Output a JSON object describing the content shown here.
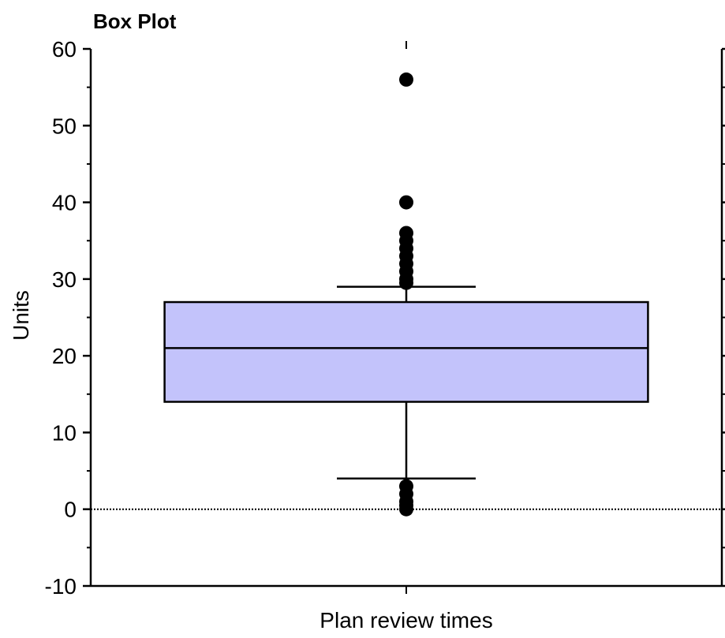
{
  "chart_data": {
    "type": "box",
    "title": "Box Plot",
    "ylabel": "Units",
    "categories": [
      "Plan review times"
    ],
    "boxes": [
      {
        "whisker_low": 4,
        "q1": 14,
        "median": 21,
        "q3": 27,
        "whisker_high": 29,
        "outliers": [
          56,
          40,
          36,
          35,
          34,
          33,
          32,
          31,
          30,
          29.5,
          3,
          2,
          1,
          0.5,
          0
        ]
      }
    ],
    "color": "#c3c3fb",
    "ylim": [
      -10,
      60
    ],
    "yticks": [
      -10,
      0,
      10,
      20,
      30,
      40,
      50,
      60
    ],
    "minor_yticks": [
      -5,
      5,
      15,
      25,
      35,
      45,
      55
    ],
    "zero_line": true
  }
}
